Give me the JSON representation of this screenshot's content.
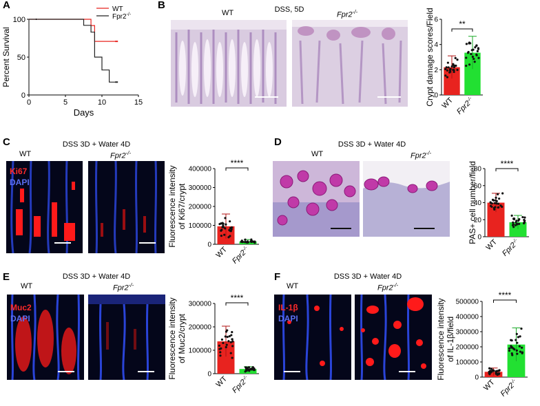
{
  "panels": {
    "A": {
      "label": "A"
    },
    "B": {
      "label": "B",
      "title": "DSS, 5D",
      "wt": "WT",
      "ko": "Fpr2",
      "ko_sup": "-/-"
    },
    "C": {
      "label": "C",
      "title": "DSS 3D + Water 4D",
      "wt": "WT",
      "ko": "Fpr2",
      "ko_sup": "-/-",
      "stain1": "Ki67",
      "stain2": "DAPI"
    },
    "D": {
      "label": "D",
      "title": "DSS 3D + Water 4D",
      "wt": "WT",
      "ko": "Fpr2",
      "ko_sup": "-/-"
    },
    "E": {
      "label": "E",
      "title": "DSS 3D + Water 4D",
      "wt": "WT",
      "ko": "Fpr2",
      "ko_sup": "-/-",
      "stain1": "Muc2",
      "stain2": "DAPI"
    },
    "F": {
      "label": "F",
      "title": "DSS 3D + Water 4D",
      "wt": "WT",
      "ko": "Fpr2",
      "ko_sup": "-/-",
      "stain1": "IL-1β",
      "stain2": "DAPI"
    }
  },
  "colors": {
    "wt": "#e8231f",
    "ko": "#22e032",
    "he_bg": "#ddd0e3",
    "he_stain": "#8a5fa3",
    "if_bg": "#04061a",
    "dapi": "#2840d8",
    "red": "#ff1a1a"
  },
  "chart_data": [
    {
      "id": "A",
      "type": "line",
      "ylabel": "Percent Survival",
      "xlabel": "Days",
      "xlim": [
        0,
        15
      ],
      "ylim": [
        0,
        100
      ],
      "xticks": [
        "0",
        "5",
        "10",
        "15"
      ],
      "yticks": [
        "0",
        "50",
        "100"
      ],
      "legend": "top-right",
      "series": [
        {
          "name": "WT",
          "x": [
            0,
            7.5,
            8.5,
            9.0,
            12
          ],
          "y": [
            100,
            100,
            91.7,
            70.8,
            70.8
          ]
        },
        {
          "name": "Fpr2",
          "name_sup": "-/-",
          "x": [
            0,
            7.0,
            7.5,
            8.5,
            9.0,
            10.0,
            11.0,
            12
          ],
          "y": [
            100,
            100,
            92,
            83,
            50,
            33,
            17,
            17
          ]
        }
      ]
    },
    {
      "id": "B",
      "type": "bar",
      "ylabel": "Crypt damage scores/Field",
      "categories": [
        "WT",
        "Fpr2"
      ],
      "category_sup": [
        "",
        "-/-"
      ],
      "values": [
        2.2,
        3.35
      ],
      "errors": [
        0.9,
        1.3
      ],
      "ylim": [
        0,
        6
      ],
      "yticks": [
        "0",
        "2",
        "4",
        "6"
      ],
      "significance": "**"
    },
    {
      "id": "C",
      "type": "bar",
      "ylabel": "Fluorescence intensity",
      "ylabel2": "of Ki67/crypt",
      "categories": [
        "WT",
        "Fpr2"
      ],
      "category_sup": [
        "",
        "-/-"
      ],
      "values": [
        95000,
        15000
      ],
      "errors": [
        65000,
        10000
      ],
      "ylim": [
        0,
        400000
      ],
      "yticks": [
        "0",
        "100000",
        "200000",
        "300000",
        "400000"
      ],
      "significance": "****"
    },
    {
      "id": "D",
      "type": "bar",
      "ylabel": "PAS+ cell number/field",
      "categories": [
        "WT",
        "Fpr2"
      ],
      "category_sup": [
        "",
        "-/-"
      ],
      "values": [
        40,
        17
      ],
      "errors": [
        11,
        8
      ],
      "ylim": [
        0,
        80
      ],
      "yticks": [
        "0",
        "20",
        "40",
        "60",
        "80"
      ],
      "significance": "****"
    },
    {
      "id": "E",
      "type": "bar",
      "ylabel": "Fluorescence intensity",
      "ylabel2": "of Muc2/crypt",
      "categories": [
        "WT",
        "Fpr2"
      ],
      "category_sup": [
        "",
        "-/-"
      ],
      "values": [
        138000,
        20000
      ],
      "errors": [
        65000,
        10000
      ],
      "ylim": [
        0,
        300000
      ],
      "yticks": [
        "0",
        "100000",
        "200000",
        "300000"
      ],
      "significance": "****"
    },
    {
      "id": "F",
      "type": "bar",
      "ylabel": "Fluorescence intensity",
      "ylabel2": "of IL-1β/field",
      "categories": [
        "WT",
        "Fpr2"
      ],
      "category_sup": [
        "",
        "-/-"
      ],
      "values": [
        35000,
        215000
      ],
      "errors": [
        25000,
        110000
      ],
      "ylim": [
        0,
        500000
      ],
      "yticks": [
        "0",
        "100000",
        "200000",
        "300000",
        "400000",
        "500000"
      ],
      "significance": "****"
    }
  ]
}
